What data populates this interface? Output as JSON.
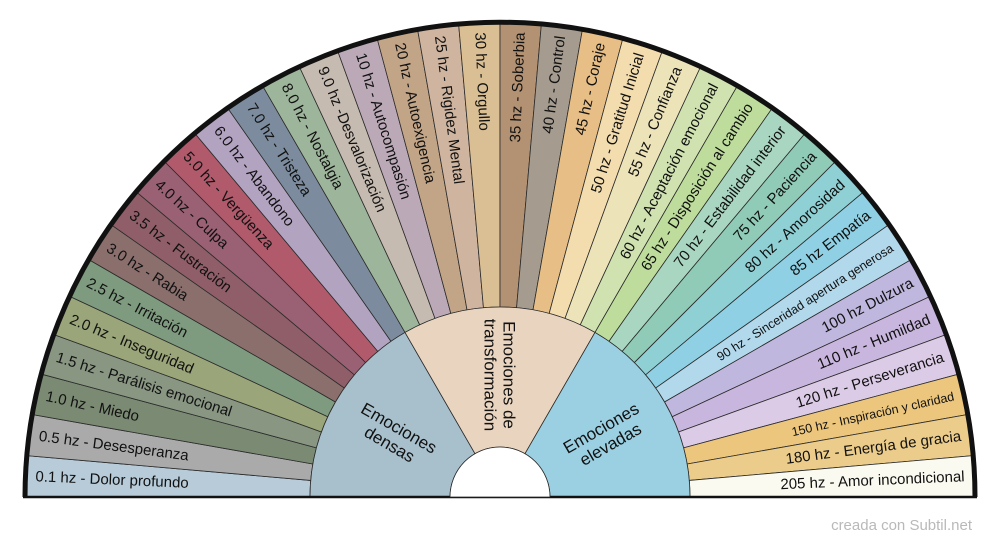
{
  "segments": [
    {
      "label": "0.1 hz - Dolor profundo",
      "color": "#b7cbd9"
    },
    {
      "label": "0.5 hz - Desesperanza",
      "color": "#aaaaaa"
    },
    {
      "label": "1.0 hz - Miedo",
      "color": "#7b8a73"
    },
    {
      "label": "1.5 hz - Parálisis emocional",
      "color": "#889682"
    },
    {
      "label": "2.0 hz - Inseguridad",
      "color": "#9aa579"
    },
    {
      "label": "2.5 hz - Irritación",
      "color": "#7e9b7f"
    },
    {
      "label": "3.0 hz - Rabia",
      "color": "#8b6f6d"
    },
    {
      "label": "3.5 hz - Fustración",
      "color": "#8f5e68"
    },
    {
      "label": "4.0 hz - Culpa",
      "color": "#9a6174"
    },
    {
      "label": "5.0 hz - Vergüenza",
      "color": "#b05a6b"
    },
    {
      "label": "6.0 hz - Abandono",
      "color": "#b2a3c1"
    },
    {
      "label": "7.0 hz - Tristeza",
      "color": "#7c8c9e"
    },
    {
      "label": "8.0 hz - Nostalgia",
      "color": "#9db59a"
    },
    {
      "label": "9.0 hz -Desvalorización",
      "color": "#c6bbb0"
    },
    {
      "label": "10 hz - Autocompasión",
      "color": "#bca9b7"
    },
    {
      "label": "20 hz - Autoexigencia",
      "color": "#c2a587"
    },
    {
      "label": "25 hz - Rigidez Mental",
      "color": "#cfb49f"
    },
    {
      "label": "30 hz - Orgullo",
      "color": "#d9bf93"
    },
    {
      "label": "35 hz - Soberbia",
      "color": "#b39273"
    },
    {
      "label": "40 hz - Control",
      "color": "#a59c8f"
    },
    {
      "label": "45 hz - Coraje",
      "color": "#e6be86"
    },
    {
      "label": "50 hz - Gratitud Inicial",
      "color": "#f3dcad"
    },
    {
      "label": "55 hz - Confianza",
      "color": "#ece3b9"
    },
    {
      "label": "60 hz - Aceptación emocional",
      "color": "#cfe2b0"
    },
    {
      "label": "65 hz - Disposición al cambio",
      "color": "#bedd9c"
    },
    {
      "label": "70 hz - Estabilidad interior",
      "color": "#a9d6c0"
    },
    {
      "label": "75 hz - Paciencia",
      "color": "#8fcbb6"
    },
    {
      "label": "80 hz - Amorosidad",
      "color": "#8ed0d4"
    },
    {
      "label": "85 hz Empatía",
      "color": "#8fd0e4"
    },
    {
      "label": "90 hz - Sinceridad apertura generosa",
      "color": "#b2d8ec"
    },
    {
      "label": "100 hz Dulzura",
      "color": "#c0b7de"
    },
    {
      "label": "110 hz - Humildad",
      "color": "#c9b6de"
    },
    {
      "label": "120 hz - Perseverancia",
      "color": "#dccbe6"
    },
    {
      "label": "150 hz - Inspiración y claridad",
      "color": "#ecc67c"
    },
    {
      "label": "180 hz - Energía de gracia",
      "color": "#ebcc8a"
    },
    {
      "label": "205 hz - Amor incondicional",
      "color": "#fbfaf0"
    }
  ],
  "sectors": [
    {
      "label_lines": [
        "Emociones",
        "densas"
      ],
      "color": "#a8bfcc"
    },
    {
      "label_lines": [
        "Emociones de",
        "transformación"
      ],
      "color": "#e8d4bf"
    },
    {
      "label_lines": [
        "Emociones",
        "elevadas"
      ],
      "color": "#9bd0e2"
    }
  ],
  "footer": "creada con Subtil.net"
}
